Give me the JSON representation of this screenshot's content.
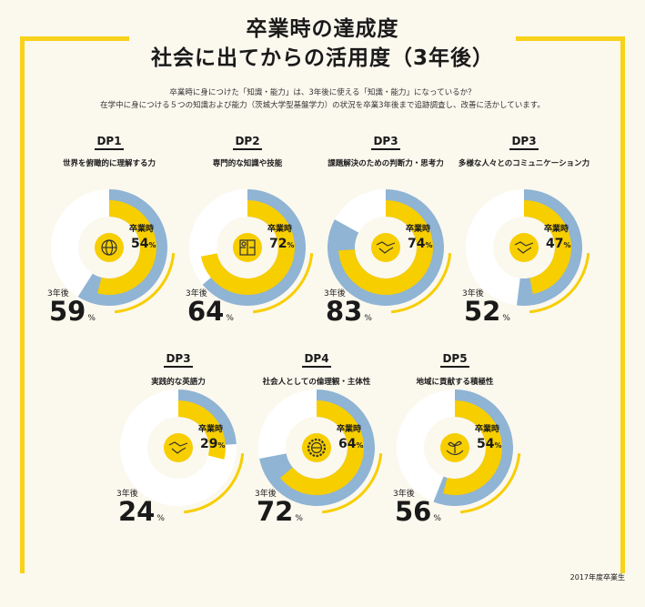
{
  "header": {
    "title_line1": "卒業時の達成度",
    "title_line2": "社会に出てからの活用度（3年後）",
    "lead_line1": "卒業時に身につけた「知識・能力」は、3年後に使える「知識・能力」になっているか？",
    "lead_line2": "在学中に身につける５つの知識および能力（茨城大学型基盤学力）の状況を卒業3年後まで追跡調査し、改善に活かしています。"
  },
  "labels": {
    "at_graduation": "卒業時",
    "after_3_years": "3年後",
    "percent": "%"
  },
  "colors": {
    "yellow": "#f7ce00",
    "blue": "#8fb4d4",
    "white_ring": "#ffffff",
    "background": "#fbf8ee",
    "frame": "#f7d21a"
  },
  "chart_data": [
    {
      "type": "donut",
      "code": "DP1",
      "label": "世界を俯瞰的に理解する力",
      "at_graduation": 54,
      "after_3_years": 59,
      "icon": "globe-icon"
    },
    {
      "type": "donut",
      "code": "DP2",
      "label": "専門的な知識や技能",
      "at_graduation": 72,
      "after_3_years": 64,
      "icon": "puzzle-icon"
    },
    {
      "type": "donut",
      "code": "DP3",
      "label": "課題解決のための判断力・思考力",
      "at_graduation": 74,
      "after_3_years": 83,
      "icon": "handshake-icon"
    },
    {
      "type": "donut",
      "code": "DP3",
      "label": "多様な人々とのコミュニケーション力",
      "at_graduation": 47,
      "after_3_years": 52,
      "icon": "handshake-icon"
    },
    {
      "type": "donut",
      "code": "DP3",
      "label": "実践的な英語力",
      "at_graduation": 29,
      "after_3_years": 24,
      "icon": "handshake-icon"
    },
    {
      "type": "donut",
      "code": "DP4",
      "label": "社会人としての倫理観・主体性",
      "at_graduation": 64,
      "after_3_years": 72,
      "icon": "gear-globe-icon"
    },
    {
      "type": "donut",
      "code": "DP5",
      "label": "地域に貢献する積極性",
      "at_graduation": 54,
      "after_3_years": 56,
      "icon": "sprout-hands-icon"
    }
  ],
  "footnote": "2017年度卒業生"
}
